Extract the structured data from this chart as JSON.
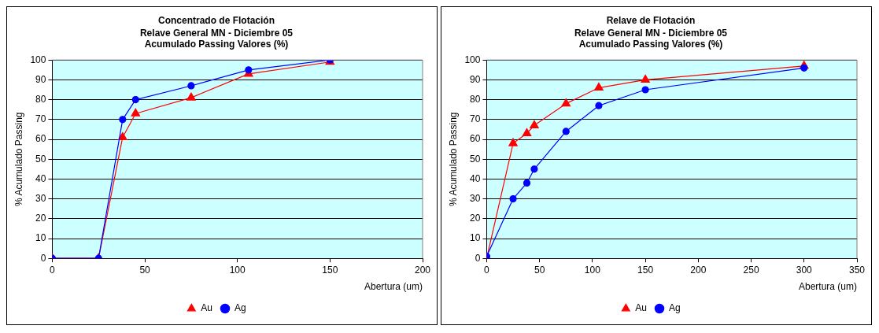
{
  "chart_data": [
    {
      "type": "line",
      "title": "Concentrado de Flotación",
      "subtitle": "Relave General MN - Diciembre 05\nAcumulado Passing Valores (%)",
      "xlabel": "Abertura (um)",
      "ylabel": "% Acumulado Passing",
      "series": [
        {
          "name": "Au",
          "color": "#ff0000",
          "marker": "triangle",
          "x": [
            0,
            25,
            38,
            45,
            75,
            106,
            150
          ],
          "values": [
            0,
            0,
            61,
            73,
            81,
            93,
            99
          ]
        },
        {
          "name": "Ag",
          "color": "#0000ff",
          "marker": "circle",
          "x": [
            0,
            25,
            38,
            45,
            75,
            106,
            150
          ],
          "values": [
            0,
            0,
            70,
            80,
            87,
            95,
            100
          ]
        }
      ],
      "xlim": [
        0,
        200
      ],
      "xticks": [
        0,
        50,
        100,
        150,
        200
      ],
      "ylim": [
        0,
        100
      ],
      "yticks": [
        0,
        10,
        20,
        30,
        40,
        50,
        60,
        70,
        80,
        90,
        100
      ],
      "grid": "y",
      "legend": "bottom",
      "line_style": "solid"
    },
    {
      "type": "line",
      "title": "Relave de Flotación",
      "subtitle": "Relave General MN - Diciembre 05\nAcumulado Passing Valores (%)",
      "xlabel": "Abertura (um)",
      "ylabel": "% Acumulado Passing",
      "series": [
        {
          "name": "Au",
          "color": "#ff0000",
          "marker": "triangle",
          "x": [
            0,
            25,
            38,
            45,
            75,
            106,
            150,
            300
          ],
          "values": [
            0,
            58,
            63,
            67,
            78,
            86,
            90,
            97
          ]
        },
        {
          "name": "Ag",
          "color": "#0000ff",
          "marker": "circle",
          "x": [
            0,
            25,
            38,
            45,
            75,
            106,
            150,
            300
          ],
          "values": [
            1,
            30,
            38,
            45,
            64,
            77,
            85,
            96
          ]
        }
      ],
      "xlim": [
        0,
        350
      ],
      "xticks": [
        0,
        50,
        100,
        150,
        200,
        250,
        300,
        350
      ],
      "ylim": [
        0,
        100
      ],
      "yticks": [
        0,
        10,
        20,
        30,
        40,
        50,
        60,
        70,
        80,
        90,
        100
      ],
      "grid": "y",
      "legend": "bottom",
      "line_style": "solid"
    }
  ]
}
